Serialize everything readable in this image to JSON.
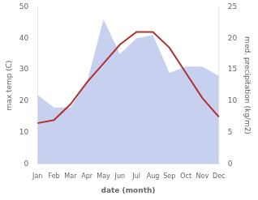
{
  "chart_data": {
    "type": "line",
    "categories": [
      "Jan",
      "Feb",
      "Mar",
      "Apr",
      "May",
      "Jun",
      "Jul",
      "Aug",
      "Sep",
      "Oct",
      "Nov",
      "Dec"
    ],
    "xlabel": "date (month)",
    "ylabel": "max temp (C)",
    "y2label": "med. precipitation (kg/m2)",
    "series": [
      {
        "type": "area",
        "color": "#c8d0f0",
        "axis": "y2",
        "values": [
          11,
          9,
          9,
          13,
          23,
          17.5,
          20,
          20.5,
          14.5,
          15.5,
          15.5,
          14
        ]
      },
      {
        "type": "line",
        "color": "#b03030",
        "values": [
          13,
          14,
          19,
          26,
          32,
          38,
          42,
          42,
          37,
          29,
          21,
          15
        ]
      }
    ],
    "ylim": [
      0,
      50
    ],
    "yticks": [
      0,
      10,
      20,
      30,
      40,
      50
    ],
    "y2lim": [
      0,
      25
    ],
    "y2ticks": [
      0,
      5,
      10,
      15,
      20,
      25
    ],
    "grid": false
  }
}
